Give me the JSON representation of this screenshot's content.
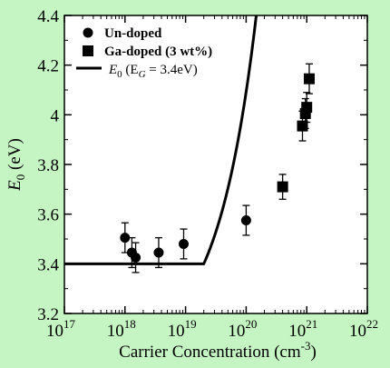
{
  "chart_data": {
    "type": "scatter",
    "xlabel": "Carrier Concentration (cm",
    "xlabel_sup": "-3",
    "xlabel_end": ")",
    "ylabel": "E",
    "ylabel_sub": "0",
    "ylabel_unit": " (eV)",
    "x_scale": "log",
    "xlim": [
      1e+17,
      1e+22
    ],
    "ylim": [
      3.2,
      4.4
    ],
    "x_ticks": [
      {
        "value": 1e+17,
        "base": "10",
        "exp": "17"
      },
      {
        "value": 1e+18,
        "base": "10",
        "exp": "18"
      },
      {
        "value": 1e+19,
        "base": "10",
        "exp": "19"
      },
      {
        "value": 1e+20,
        "base": "10",
        "exp": "20"
      },
      {
        "value": 1e+21,
        "base": "10",
        "exp": "21"
      },
      {
        "value": 1e+22,
        "base": "10",
        "exp": "22"
      }
    ],
    "y_ticks": [
      {
        "value": 3.2,
        "label": "3.2"
      },
      {
        "value": 3.4,
        "label": "3.4"
      },
      {
        "value": 3.6,
        "label": "3.6"
      },
      {
        "value": 3.8,
        "label": "3.8"
      },
      {
        "value": 4.0,
        "label": "4"
      },
      {
        "value": 4.2,
        "label": "4.2"
      },
      {
        "value": 4.4,
        "label": "4.4"
      }
    ],
    "legend_position": "top-left",
    "series": [
      {
        "name": "Un-doped",
        "marker": "circle",
        "points": [
          {
            "x": 1e+18,
            "y": 3.505,
            "err": 0.06
          },
          {
            "x": 1.3e+18,
            "y": 3.445,
            "err": 0.06
          },
          {
            "x": 1.5e+18,
            "y": 3.425,
            "err": 0.06
          },
          {
            "x": 3.6e+18,
            "y": 3.445,
            "err": 0.06
          },
          {
            "x": 9.3e+18,
            "y": 3.48,
            "err": 0.06
          },
          {
            "x": 1e+20,
            "y": 3.575,
            "err": 0.06
          }
        ]
      },
      {
        "name": "Ga-doped (3 wt%)",
        "marker": "square",
        "points": [
          {
            "x": 4e+20,
            "y": 3.71,
            "err": 0.05
          },
          {
            "x": 8.5e+20,
            "y": 3.955,
            "err": 0.06
          },
          {
            "x": 9.5e+20,
            "y": 4.005,
            "err": 0.06
          },
          {
            "x": 1e+21,
            "y": 4.03,
            "err": 0.06
          },
          {
            "x": 1.1e+21,
            "y": 4.145,
            "err": 0.06
          }
        ]
      }
    ],
    "model_curve": {
      "name_prefix": "E",
      "name_sub": "0",
      "name_mid": " (E",
      "name_sub2": "G",
      "name_end": " = 3.4eV)",
      "EG": 3.4,
      "onset_x": 2e+19,
      "coefficient": 0.36
    },
    "colors": {
      "background": "#c6f5c4",
      "plot_area": "#ffffff",
      "ink": "#000000"
    }
  }
}
